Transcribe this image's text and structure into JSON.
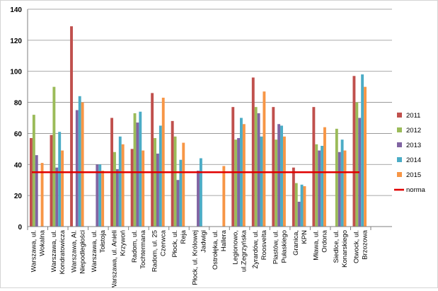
{
  "chart_data": {
    "type": "bar",
    "title": "",
    "xlabel": "",
    "ylabel": "",
    "ylim": [
      0,
      140
    ],
    "yticks": [
      "0",
      "20",
      "40",
      "60",
      "80",
      "100",
      "120",
      "140"
    ],
    "grid": true,
    "legend_position": "right",
    "categories": [
      "Warszawa, ul. Wokalna",
      "Warszawa, ul. Kondratowicza",
      "Warszawa, Al. Niepodległości",
      "Warszawa, ul. Tołstoja",
      "Warszawa, ul. Anieli Krzywoń",
      "Radom, ul. Tochtermana",
      "Radom, ul. 25 Czerwca",
      "Płock, ul. Reja",
      "Płock, ul. Królowej Jadwigi",
      "Ostrołęka, ul. Hallera",
      "Legionowo, ul.Zegrzyńska",
      "Żyrardów, ul. Roosvelta",
      "Piastów, ul. Pułaskiego",
      "Granica, KPN",
      "Mława, ul. Ordona",
      "Siedlce, ul. Konarskiego",
      "Otwock, ul. Brzozowa"
    ],
    "series": [
      {
        "name": "2011",
        "color": "#c0504d",
        "values": [
          57,
          59,
          129,
          null,
          70,
          50,
          86,
          68,
          null,
          null,
          77,
          96,
          77,
          38,
          77,
          null,
          97
        ]
      },
      {
        "name": "2012",
        "color": "#9bbb59",
        "values": [
          72,
          90,
          null,
          null,
          48,
          73,
          57,
          58,
          null,
          null,
          56,
          77,
          56,
          28,
          53,
          63,
          80
        ]
      },
      {
        "name": "2013",
        "color": "#8064a2",
        "values": [
          46,
          38,
          75,
          40,
          37,
          67,
          47,
          30,
          36,
          null,
          57,
          73,
          66,
          16,
          49,
          48,
          70
        ]
      },
      {
        "name": "2014",
        "color": "#4bacc6",
        "values": [
          null,
          61,
          84,
          40,
          58,
          74,
          65,
          43,
          44,
          null,
          70,
          58,
          65,
          27,
          52,
          56,
          98
        ]
      },
      {
        "name": "2015",
        "color": "#f79646",
        "values": [
          41,
          49,
          80,
          36,
          53,
          49,
          83,
          54,
          null,
          39,
          66,
          87,
          58,
          26,
          64,
          49,
          90
        ]
      }
    ],
    "norm": {
      "name": "norma",
      "color": "#e00000",
      "value": 35
    }
  }
}
